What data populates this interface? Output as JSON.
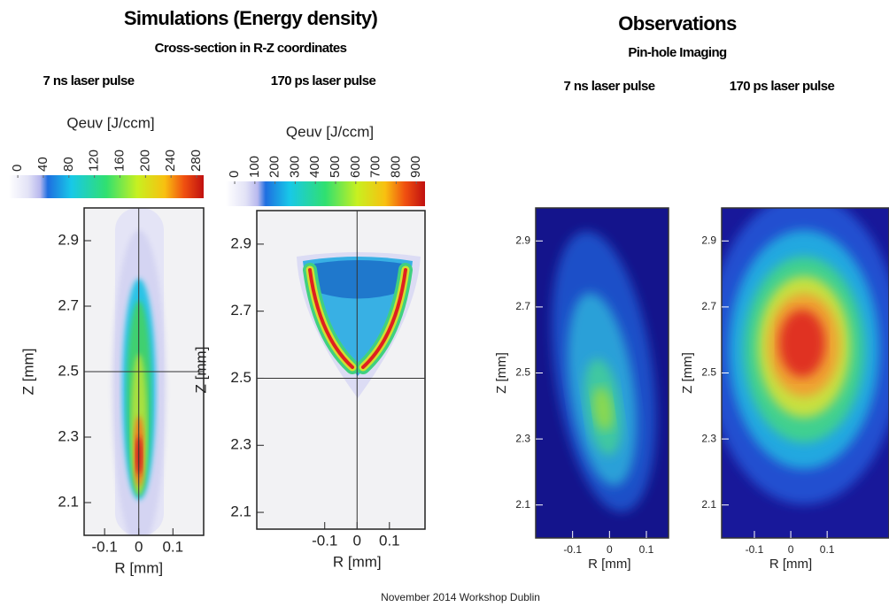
{
  "left_header": {
    "title": "Simulations (Energy density)",
    "subtitle": "Cross-section in R-Z coordinates"
  },
  "right_header": {
    "title": "Observations",
    "subtitle": "Pin-hole Imaging"
  },
  "panels": [
    {
      "caption": "7 ns laser pulse",
      "colorbar": {
        "label": "Qeuv [J/ccm]",
        "ticks": [
          0,
          40,
          80,
          120,
          160,
          200,
          240,
          280
        ],
        "lim": [
          -14,
          291
        ]
      },
      "xlabel": "R [mm]",
      "ylabel": "Z [mm]",
      "xlim": [
        -0.16,
        0.19
      ],
      "xticks": [
        -0.1,
        0,
        0.1
      ],
      "ylim": [
        2.0,
        3.0
      ],
      "yticks": [
        2.1,
        2.3,
        2.5,
        2.7,
        2.9
      ],
      "crosshair": true
    },
    {
      "caption": "170 ps laser pulse",
      "colorbar": {
        "label": "Qeuv [J/ccm]",
        "ticks": [
          0,
          100,
          200,
          300,
          400,
          500,
          600,
          700,
          800,
          900
        ],
        "lim": [
          -44,
          943
        ]
      },
      "xlabel": "R [mm]",
      "ylabel": "Z [mm]",
      "xlim": [
        -0.31,
        0.21
      ],
      "xticks": [
        -0.1,
        0,
        0.1
      ],
      "ylim": [
        2.05,
        3.0
      ],
      "yticks": [
        2.1,
        2.3,
        2.5,
        2.7,
        2.9
      ],
      "crosshair": true
    },
    {
      "caption": "7 ns laser pulse",
      "xlabel": "R [mm]",
      "ylabel": "Z [mm]",
      "xlim": [
        -0.2,
        0.16
      ],
      "xticks": [
        -0.1,
        0,
        0.1
      ],
      "ylim": [
        2.0,
        3.0
      ],
      "yticks": [
        2.1,
        2.3,
        2.5,
        2.7,
        2.9
      ],
      "crosshair": false
    },
    {
      "caption": "170 ps laser pulse",
      "xlabel": "R [mm]",
      "ylabel": "Z [mm]",
      "xlim": [
        -0.19,
        0.27
      ],
      "xticks": [
        -0.1,
        0,
        0.1
      ],
      "ylim": [
        2.0,
        3.0
      ],
      "yticks": [
        2.1,
        2.3,
        2.5,
        2.7,
        2.9
      ],
      "crosshair": false
    }
  ],
  "footer": "November 2014 Workshop Dublin"
}
